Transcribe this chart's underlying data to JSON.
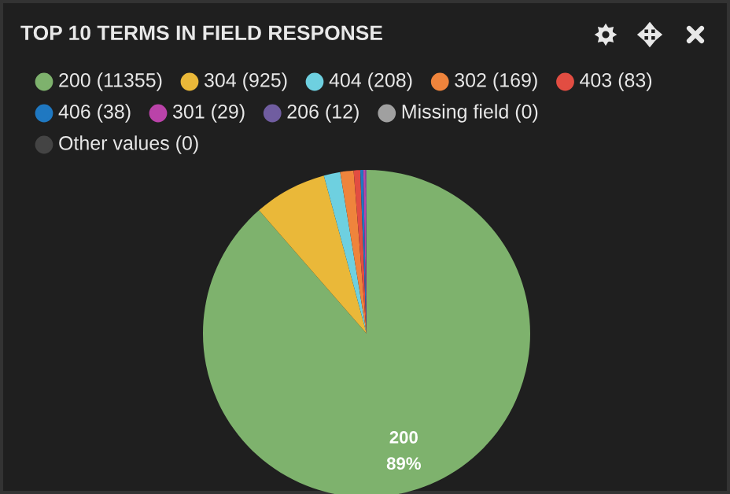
{
  "chart_data": {
    "type": "pie",
    "title": "TOP 10 TERMS IN FIELD RESPONSE",
    "categories": [
      "200 (11355)",
      "304 (925)",
      "404 (208)",
      "302 (169)",
      "403 (83)",
      "406 (38)",
      "301 (29)",
      "206 (12)",
      "Missing field (0)",
      "Other values (0)"
    ],
    "values": [
      11355,
      925,
      208,
      169,
      83,
      38,
      29,
      12,
      0,
      0
    ],
    "colors": [
      "#7eb26d",
      "#eab839",
      "#6ed0e0",
      "#ef843c",
      "#e24d42",
      "#1f78c1",
      "#ba43a9",
      "#705da0",
      "#a0a0a0",
      "#444444"
    ],
    "annotations": [
      "200",
      "89%"
    ],
    "legend": "top"
  }
}
